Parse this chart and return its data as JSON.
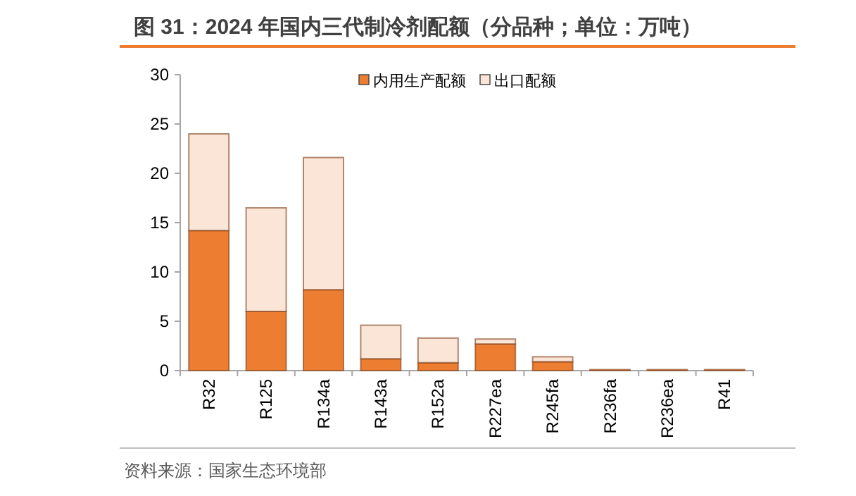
{
  "chart_data": {
    "type": "bar",
    "stacked": true,
    "title": "图 31：2024 年国内三代制冷剂配额（分品种；单位：万吨）",
    "categories": [
      "R32",
      "R125",
      "R134a",
      "R143a",
      "R152a",
      "R227ea",
      "R245fa",
      "R236fa",
      "R236ea",
      "R41"
    ],
    "series": [
      {
        "name": "内用生产配额",
        "color": "#ed7d31",
        "values": [
          14.2,
          6.0,
          8.2,
          1.2,
          0.8,
          2.7,
          0.9,
          0.1,
          0.1,
          0.1
        ]
      },
      {
        "name": "出口配额",
        "color": "#fbe5d6",
        "values": [
          9.8,
          10.5,
          13.4,
          3.4,
          2.5,
          0.5,
          0.5,
          0,
          0,
          0
        ]
      }
    ],
    "ylim": [
      0,
      30
    ],
    "yticks": [
      0,
      5,
      10,
      15,
      20,
      25,
      30
    ],
    "grid": false,
    "legend": "top right",
    "annotations": [
      "资料来源：国家生态环境部"
    ]
  }
}
